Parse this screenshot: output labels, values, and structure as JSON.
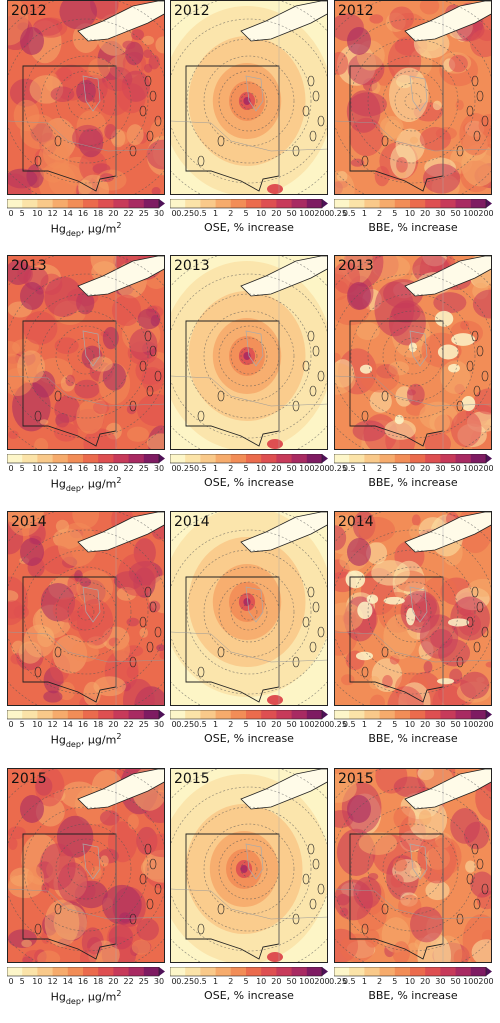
{
  "chart_data": [
    {
      "type": "heatmap",
      "year_labels": [
        "2012",
        "2013",
        "2014",
        "2015"
      ],
      "columns": [
        {
          "id": "hg",
          "colorbar_label_main": "Hg",
          "colorbar_label_sub": "dep",
          "colorbar_label_unit": ",  µg/m",
          "colorbar_label_sup": "2",
          "ticks": [
            "0",
            "5",
            "10",
            "12",
            "14",
            "16",
            "18",
            "20",
            "22",
            "25",
            "30"
          ],
          "extend": "max",
          "colors": [
            "#fdf6c9",
            "#fbe3a8",
            "#f9c98a",
            "#f6ab6c",
            "#f28d57",
            "#eb6b4d",
            "#de4f51",
            "#c73a5a",
            "#a82a62",
            "#7e1b62",
            "#4f1158"
          ]
        },
        {
          "id": "ose",
          "colorbar_label": "OSE, % increase",
          "ticks": [
            "0",
            "0.25",
            "0.5",
            "1",
            "2",
            "5",
            "10",
            "20",
            "50",
            "100",
            "200"
          ],
          "extend": "max",
          "colors": [
            "#fdf6c9",
            "#fbe3a8",
            "#f9c98a",
            "#f6ab6c",
            "#f28d57",
            "#eb6b4d",
            "#de4f51",
            "#c73a5a",
            "#a82a62",
            "#7e1b62",
            "#4f1158"
          ]
        },
        {
          "id": "bbe",
          "colorbar_label": "BBE, % increase",
          "ticks": [
            "0.25",
            "0.5",
            "1",
            "2",
            "5",
            "10",
            "20",
            "30",
            "50",
            "100",
            "200"
          ],
          "extend": "max",
          "colors": [
            "#fdf6c9",
            "#fbe3a8",
            "#f9c98a",
            "#f6ab6c",
            "#f28d57",
            "#eb6b4d",
            "#de4f51",
            "#c73a5a",
            "#a82a62",
            "#7e1b62",
            "#4f1158"
          ]
        }
      ]
    }
  ]
}
